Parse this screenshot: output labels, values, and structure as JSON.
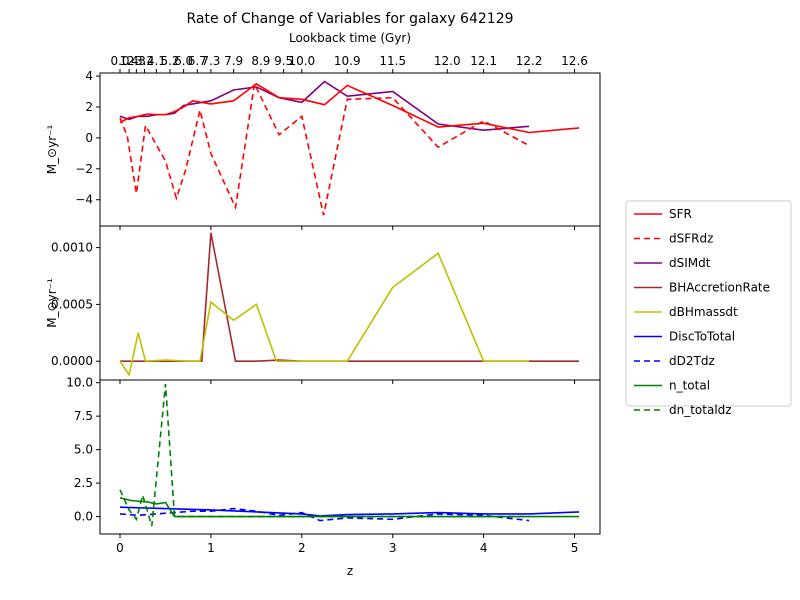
{
  "chart_data": {
    "type": "line",
    "title": "Rate of Change of Variables for galaxy 642129",
    "xlabel": "z",
    "top_xlabel": "Lookback time (Gyr)",
    "top_ticks": [
      {
        "z": 0.0,
        "label": "0.0"
      },
      {
        "z": 0.1,
        "label": "1.4"
      },
      {
        "z": 0.18,
        "label": "2.3"
      },
      {
        "z": 0.27,
        "label": "3.2"
      },
      {
        "z": 0.4,
        "label": "4.1"
      },
      {
        "z": 0.55,
        "label": "5.2"
      },
      {
        "z": 0.7,
        "label": "6.0"
      },
      {
        "z": 0.85,
        "label": "6.7"
      },
      {
        "z": 1.0,
        "label": "7.3"
      },
      {
        "z": 1.25,
        "label": "7.9"
      },
      {
        "z": 1.55,
        "label": "8.9"
      },
      {
        "z": 1.8,
        "label": "9.5"
      },
      {
        "z": 2.0,
        "label": "10.0"
      },
      {
        "z": 2.5,
        "label": "10.9"
      },
      {
        "z": 3.0,
        "label": "11.5"
      },
      {
        "z": 3.6,
        "label": "12.0"
      },
      {
        "z": 4.0,
        "label": "12.1"
      },
      {
        "z": 4.5,
        "label": "12.2"
      },
      {
        "z": 5.0,
        "label": "12.6"
      }
    ],
    "xlim": [
      -0.22,
      5.28
    ],
    "xticks": [
      0,
      1,
      2,
      3,
      4,
      5
    ],
    "legend_position": "outside-right",
    "panels": [
      {
        "ylabel": "M_⊙yr⁻¹",
        "ylim": [
          -5.7,
          4.2
        ],
        "yticks": [
          -4,
          -2,
          0,
          2,
          4
        ],
        "yticklabels": [
          "−4",
          "−2",
          "0",
          "2",
          "4"
        ],
        "series": [
          {
            "name": "dSIMdt",
            "color": "#800080",
            "dash": "",
            "x": [
              0,
              0.1,
              0.2,
              0.3,
              0.4,
              0.5,
              0.6,
              0.7,
              0.8,
              1.0,
              1.25,
              1.5,
              1.75,
              2.0,
              2.25,
              2.5,
              3.0,
              3.5,
              4.0,
              4.5
            ],
            "y": [
              1.4,
              1.2,
              1.4,
              1.4,
              1.5,
              1.5,
              1.6,
              2.1,
              2.2,
              2.4,
              3.1,
              3.3,
              2.6,
              2.3,
              3.65,
              2.7,
              3.0,
              0.9,
              0.5,
              0.75
            ]
          },
          {
            "name": "SFR",
            "color": "#ff0000",
            "dash": "",
            "x": [
              0,
              0.1,
              0.2,
              0.3,
              0.4,
              0.5,
              0.6,
              0.7,
              0.8,
              1.0,
              1.25,
              1.5,
              1.75,
              2.0,
              2.25,
              2.5,
              3.0,
              3.5,
              4.0,
              4.5,
              5.05
            ],
            "y": [
              1.0,
              1.3,
              1.4,
              1.55,
              1.5,
              1.5,
              1.7,
              2.0,
              2.4,
              2.2,
              2.4,
              3.5,
              2.6,
              2.5,
              2.15,
              3.4,
              2.1,
              0.7,
              0.95,
              0.35,
              0.65
            ]
          },
          {
            "name": "dSFRdz",
            "color": "#ff0000",
            "dash": "6,4",
            "x": [
              0,
              0.08,
              0.18,
              0.28,
              0.5,
              0.62,
              0.72,
              0.88,
              1.0,
              1.27,
              1.48,
              1.75,
              2.0,
              2.24,
              2.5,
              3.0,
              3.5,
              4.0,
              4.5
            ],
            "y": [
              1.3,
              0.1,
              -3.6,
              0.8,
              -1.5,
              -3.9,
              -2.1,
              1.8,
              -1.0,
              -4.5,
              3.5,
              0.2,
              1.4,
              -5.0,
              2.5,
              2.6,
              -0.6,
              1.1,
              -0.5
            ]
          }
        ]
      },
      {
        "ylabel": "M_⊙yr⁻¹",
        "ylim": [
          -0.000165,
          0.00119
        ],
        "yticks": [
          0,
          0.0005,
          0.001
        ],
        "yticklabels": [
          "0.0000",
          "0.0005",
          "0.0010"
        ],
        "series": [
          {
            "name": "BHAccretionRate",
            "color": "#a52a2a",
            "dash": "",
            "x": [
              0,
              0.25,
              0.5,
              0.75,
              0.9,
              1.0,
              1.27,
              1.5,
              1.75,
              2.0,
              2.5,
              3.0,
              4.0,
              4.5,
              5.05
            ],
            "y": [
              0,
              0,
              0,
              0,
              0,
              0.00113,
              0,
              0,
              1e-05,
              0,
              0,
              0,
              0,
              0,
              0
            ]
          },
          {
            "name": "dBHmassdt",
            "color": "#bfbf00",
            "dash": "",
            "x": [
              0,
              0.1,
              0.2,
              0.28,
              0.5,
              0.75,
              0.88,
              1.0,
              1.25,
              1.5,
              1.72,
              2.0,
              2.5,
              3.0,
              3.5,
              4.0,
              4.5
            ],
            "y": [
              0,
              -0.00012,
              0.00025,
              0,
              1e-05,
              0,
              0,
              0.00052,
              0.00036,
              0.0005,
              0,
              0,
              0,
              0.00065,
              0.00095,
              0,
              0
            ]
          }
        ]
      },
      {
        "ylabel": "",
        "ylim": [
          -1.3,
          10.2
        ],
        "yticks": [
          0,
          2.5,
          5,
          7.5,
          10
        ],
        "yticklabels": [
          "0.0",
          "2.5",
          "5.0",
          "7.5",
          "10.0"
        ],
        "series": [
          {
            "name": "DiscToTotal",
            "color": "#0000ff",
            "dash": "",
            "x": [
              0,
              0.5,
              1.0,
              1.5,
              2.0,
              2.2,
              2.5,
              3.0,
              3.5,
              4.0,
              4.5,
              5.05
            ],
            "y": [
              0.7,
              0.6,
              0.5,
              0.35,
              0.2,
              0.05,
              0.15,
              0.2,
              0.3,
              0.2,
              0.2,
              0.35
            ]
          },
          {
            "name": "dD2Tdz",
            "color": "#0000ff",
            "dash": "6,4",
            "x": [
              0,
              0.2,
              0.4,
              0.6,
              0.8,
              1.0,
              1.25,
              1.5,
              1.75,
              2.0,
              2.2,
              2.5,
              2.75,
              3.0,
              3.5,
              4.0,
              4.5
            ],
            "y": [
              0.2,
              0.1,
              0.2,
              0.3,
              0.4,
              0.4,
              0.6,
              0.4,
              0.1,
              0.3,
              -0.3,
              -0.1,
              -0.15,
              -0.2,
              0.2,
              0.1,
              -0.3
            ]
          },
          {
            "name": "n_total",
            "color": "#008000",
            "dash": "",
            "x": [
              0,
              0.12,
              0.3,
              0.4,
              0.5,
              0.6,
              0.8,
              1.0,
              2.0,
              3.0,
              4.0,
              5.05
            ],
            "y": [
              1.4,
              1.2,
              1.1,
              0.95,
              1.05,
              0.0,
              0.0,
              0.0,
              0.0,
              0.0,
              0.0,
              0.0
            ]
          },
          {
            "name": "dn_totaldz",
            "color": "#008000",
            "dash": "6,4",
            "x": [
              0,
              0.1,
              0.18,
              0.25,
              0.35,
              0.5,
              0.6,
              0.8,
              1.0,
              2.0,
              3.0,
              4.0,
              4.5
            ],
            "y": [
              2.0,
              0.5,
              -0.2,
              1.6,
              -0.7,
              9.9,
              0.0,
              0.0,
              0.0,
              0.0,
              0.0,
              0.0,
              0.0
            ]
          }
        ]
      }
    ],
    "legend": [
      {
        "name": "SFR",
        "color": "#ff0000",
        "dash": ""
      },
      {
        "name": "dSFRdz",
        "color": "#ff0000",
        "dash": "6,4"
      },
      {
        "name": "dSIMdt",
        "color": "#800080",
        "dash": ""
      },
      {
        "name": "BHAccretionRate",
        "color": "#a52a2a",
        "dash": ""
      },
      {
        "name": "dBHmassdt",
        "color": "#bfbf00",
        "dash": ""
      },
      {
        "name": "DiscToTotal",
        "color": "#0000ff",
        "dash": ""
      },
      {
        "name": "dD2Tdz",
        "color": "#0000ff",
        "dash": "6,4"
      },
      {
        "name": "n_total",
        "color": "#008000",
        "dash": ""
      },
      {
        "name": "dn_totaldz",
        "color": "#008000",
        "dash": "6,4"
      }
    ]
  }
}
